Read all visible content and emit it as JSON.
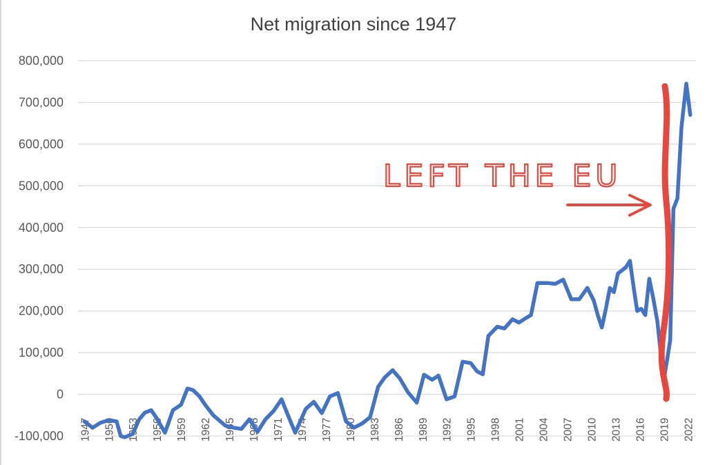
{
  "chart_data": {
    "type": "line",
    "title": "Net migration since 1947",
    "xlabel": "",
    "ylabel": "",
    "ylim": [
      -100000,
      800000
    ],
    "ytick_labels": [
      "-100,000",
      "0",
      "100,000",
      "200,000",
      "300,000",
      "400,000",
      "500,000",
      "600,000",
      "700,000",
      "800,000"
    ],
    "xtick_labels": [
      "1947",
      "1950",
      "1953",
      "1956",
      "1959",
      "1962",
      "1965",
      "1968",
      "1971",
      "1974",
      "1977",
      "1980",
      "1983",
      "1986",
      "1989",
      "1992",
      "1995",
      "1998",
      "2001",
      "2004",
      "2007",
      "2010",
      "2013",
      "2016",
      "2019",
      "2022"
    ],
    "grid": true,
    "legend": "none",
    "series": [
      {
        "color": "#4472c4",
        "points": [
          [
            1947,
            -65000
          ],
          [
            1948,
            -80000
          ],
          [
            1949,
            -68000
          ],
          [
            1950,
            -62000
          ],
          [
            1951,
            -65000
          ],
          [
            1951.5,
            -100000
          ],
          [
            1952,
            -103000
          ],
          [
            1953,
            -95000
          ],
          [
            1953.8,
            -60000
          ],
          [
            1954.5,
            -44000
          ],
          [
            1955.3,
            -38000
          ],
          [
            1956,
            -58000
          ],
          [
            1957,
            -92000
          ],
          [
            1958,
            -38000
          ],
          [
            1959,
            -25000
          ],
          [
            1959.8,
            14000
          ],
          [
            1960.5,
            10000
          ],
          [
            1961.3,
            -5000
          ],
          [
            1962,
            -25000
          ],
          [
            1963,
            -50000
          ],
          [
            1964.5,
            -75000
          ],
          [
            1965.5,
            -80000
          ],
          [
            1966.5,
            -83000
          ],
          [
            1967.5,
            -60000
          ],
          [
            1968.5,
            -90000
          ],
          [
            1969.5,
            -60000
          ],
          [
            1970.5,
            -40000
          ],
          [
            1971.5,
            -12000
          ],
          [
            1972.5,
            -60000
          ],
          [
            1973.2,
            -92000
          ],
          [
            1974.5,
            -35000
          ],
          [
            1975.5,
            -18000
          ],
          [
            1976.5,
            -45000
          ],
          [
            1977.5,
            -5000
          ],
          [
            1978.5,
            3000
          ],
          [
            1979.5,
            -65000
          ],
          [
            1980.5,
            -80000
          ],
          [
            1981.5,
            -70000
          ],
          [
            1982.5,
            -55000
          ],
          [
            1983.5,
            18000
          ],
          [
            1984.3,
            40000
          ],
          [
            1985.3,
            58000
          ],
          [
            1986.2,
            38000
          ],
          [
            1987.2,
            5000
          ],
          [
            1988.3,
            -20000
          ],
          [
            1989.2,
            47000
          ],
          [
            1990.2,
            35000
          ],
          [
            1991,
            45000
          ],
          [
            1992,
            -12000
          ],
          [
            1993,
            -5000
          ],
          [
            1994,
            78000
          ],
          [
            1995,
            75000
          ],
          [
            1995.8,
            55000
          ],
          [
            1996.5,
            48000
          ],
          [
            1997.2,
            140000
          ],
          [
            1998.3,
            162000
          ],
          [
            1999.2,
            158000
          ],
          [
            2000.2,
            180000
          ],
          [
            2001,
            172000
          ],
          [
            2001.8,
            182000
          ],
          [
            2002.5,
            190000
          ],
          [
            2003.3,
            267000
          ],
          [
            2004.5,
            267000
          ],
          [
            2005.5,
            265000
          ],
          [
            2006.5,
            275000
          ],
          [
            2007.5,
            228000
          ],
          [
            2008.5,
            228000
          ],
          [
            2009.5,
            255000
          ],
          [
            2010.3,
            225000
          ],
          [
            2010.8,
            190000
          ],
          [
            2011.3,
            160000
          ],
          [
            2011.8,
            205000
          ],
          [
            2012.3,
            255000
          ],
          [
            2012.8,
            245000
          ],
          [
            2013.3,
            290000
          ],
          [
            2013.8,
            297000
          ],
          [
            2014.3,
            305000
          ],
          [
            2014.8,
            320000
          ],
          [
            2015.3,
            250000
          ],
          [
            2015.7,
            200000
          ],
          [
            2016.2,
            205000
          ],
          [
            2016.7,
            190000
          ],
          [
            2017.2,
            277000
          ],
          [
            2017.7,
            230000
          ],
          [
            2018.2,
            175000
          ],
          [
            2018.7,
            85000
          ],
          [
            2019,
            35000
          ],
          [
            2019.4,
            80000
          ],
          [
            2019.8,
            130000
          ],
          [
            2020.2,
            445000
          ],
          [
            2020.7,
            470000
          ],
          [
            2021.2,
            640000
          ],
          [
            2021.8,
            745000
          ],
          [
            2022.3,
            670000
          ]
        ]
      }
    ]
  },
  "annotation": {
    "text": "LEFT THE EU",
    "color": "#e8473f",
    "marker_year": 2019.3
  }
}
